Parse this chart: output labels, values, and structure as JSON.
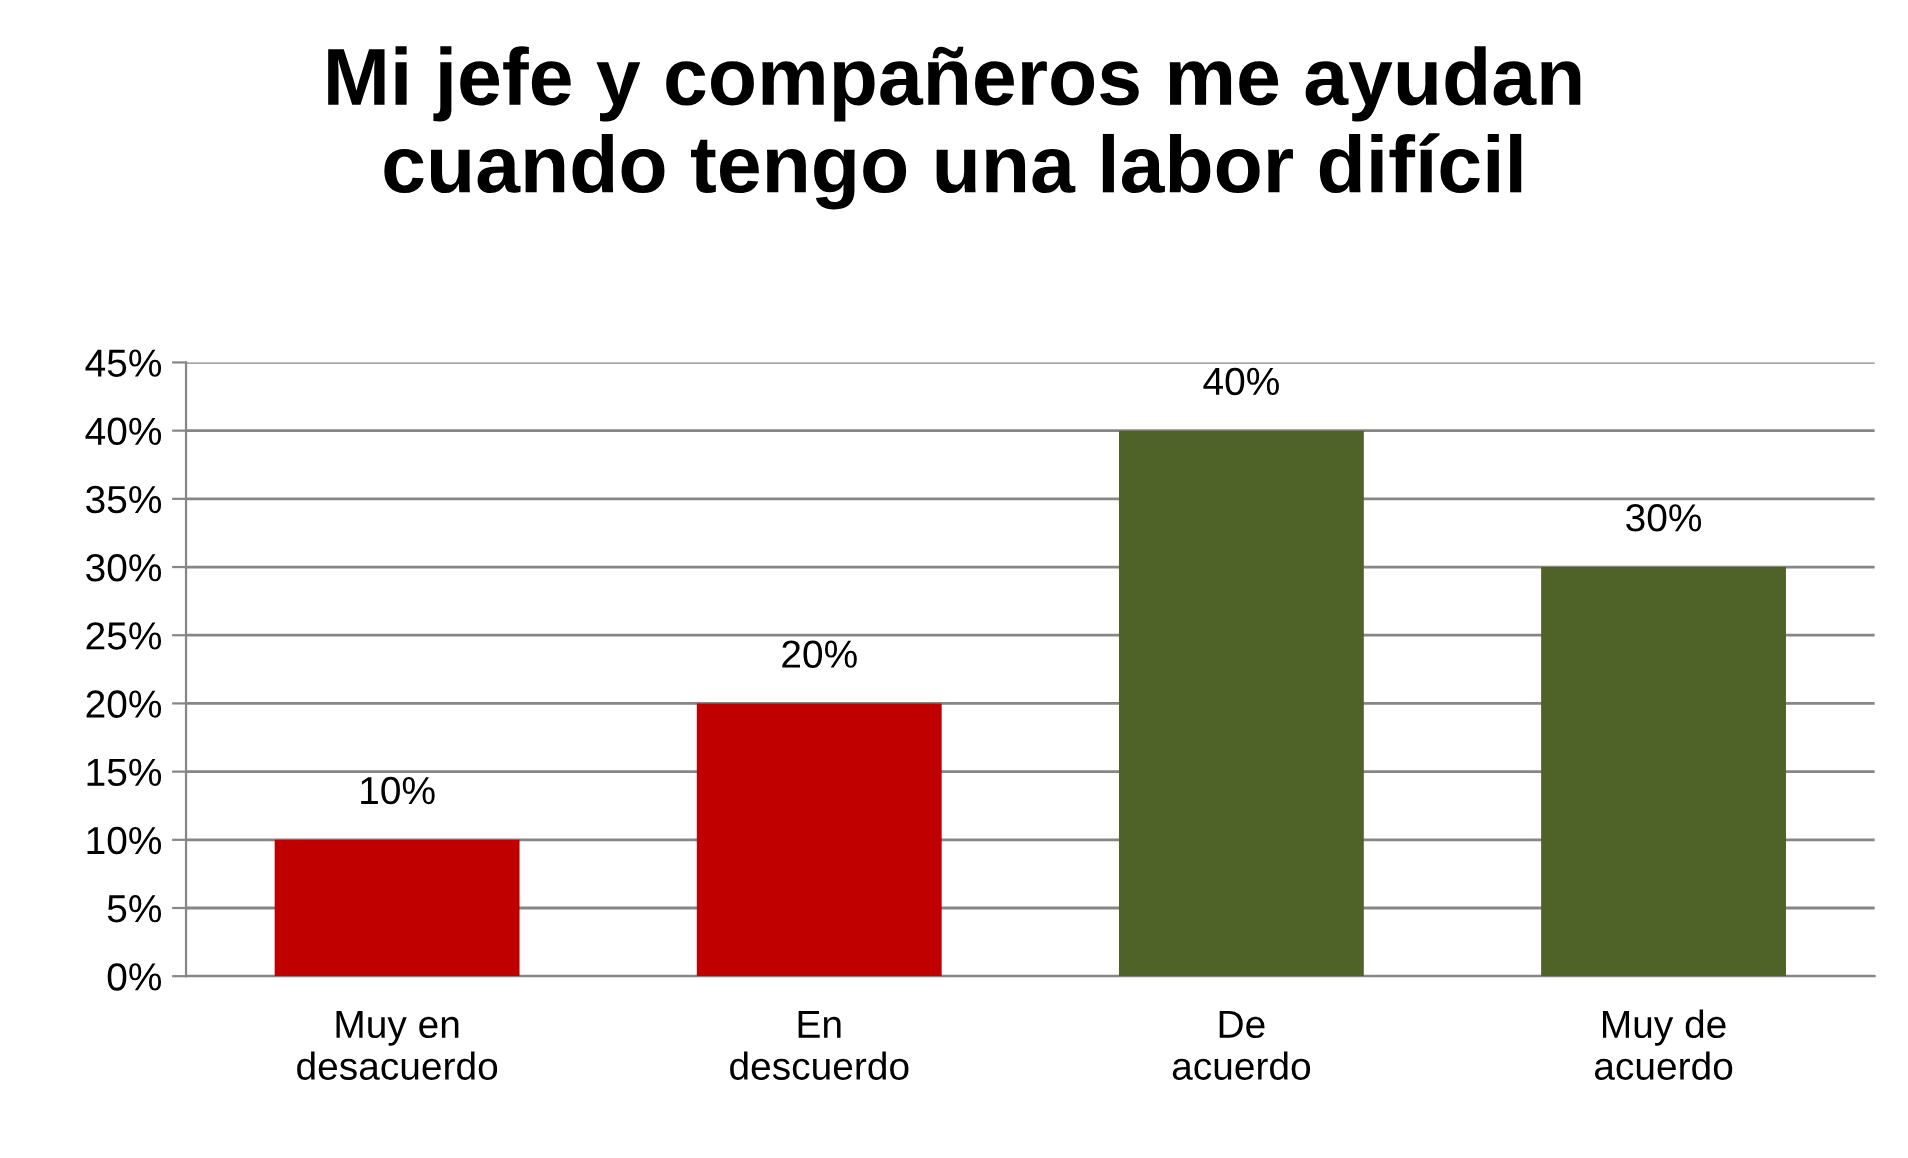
{
  "chart_data": {
    "type": "bar",
    "title": "Mi jefe y compañeros me ayudan\ncuando tengo una labor difícil",
    "categories": [
      "Muy en\ndesacuerdo",
      "En\ndescuerdo",
      "De\nacuerdo",
      "Muy de\nacuerdo"
    ],
    "values": [
      10,
      20,
      40,
      30
    ],
    "colors": [
      "#c00000",
      "#c00000",
      "#4f6228",
      "#4f6228"
    ],
    "value_labels": [
      "10%",
      "20%",
      "40%",
      "30%"
    ],
    "ylim": [
      0,
      45
    ],
    "yticks": [
      {
        "value": 0,
        "label": "0%"
      },
      {
        "value": 5,
        "label": "5%"
      },
      {
        "value": 10,
        "label": "10%"
      },
      {
        "value": 15,
        "label": "15%"
      },
      {
        "value": 20,
        "label": "20%"
      },
      {
        "value": 25,
        "label": "25%"
      },
      {
        "value": 30,
        "label": "30%"
      },
      {
        "value": 35,
        "label": "35%"
      },
      {
        "value": 40,
        "label": "40%"
      },
      {
        "value": 45,
        "label": "45%"
      }
    ],
    "grid": "y",
    "legend": false
  }
}
